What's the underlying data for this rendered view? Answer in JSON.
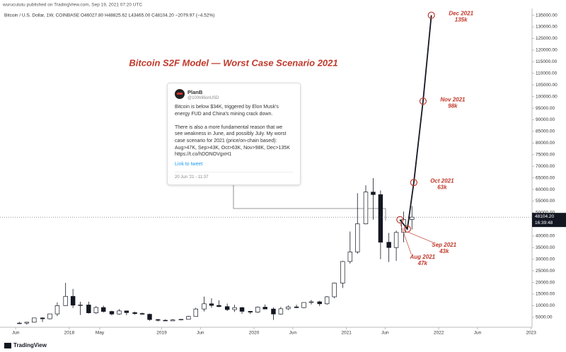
{
  "header": "wurucututu published on TradingView.com, Sep 19, 2021 07:20 UTC",
  "symbol_line": "Bitcoin / U.S. Dollar, 1W, COINBASE  O46027.80  H48825.62  L43465.00  C48104.20  −2079.97 (−4.52%)",
  "footer": "TradingView",
  "tweet": {
    "name": "PlanB",
    "handle": "@100trillionUSD",
    "lines": [
      "Bitcoin is below $34K, triggered by Elon Musk's",
      "energy FUD and China's mining crack down.",
      "",
      "There is also a more fundamental reason that we",
      "see weakness in June, and possibly July. My worst",
      "case scenario for 2021 (price/on-chain based):",
      "Aug>47K, Sep>43K, Oct>63K, Nov>98K, Dec>135K",
      "https://t.co/hDONOVgxH1"
    ],
    "link": "Link to tweet",
    "date": "20 Jun '21 - 11:37"
  },
  "chart_data": {
    "type": "candlestick",
    "title": "Bitcoin S2F Model — Worst Case Scenario 2021",
    "up_color": "#ffffff",
    "down_color": "#131722",
    "wick_color": "#131722",
    "xlim": [
      2017.25,
      2023.01
    ],
    "ylim": [
      1000,
      137000
    ],
    "xticks": [
      {
        "value": 2017.42,
        "label": "Jun"
      },
      {
        "value": 2018,
        "label": "2018"
      },
      {
        "value": 2018.33,
        "label": "May"
      },
      {
        "value": 2019,
        "label": "2019"
      },
      {
        "value": 2019.42,
        "label": "Jun"
      },
      {
        "value": 2020,
        "label": "2020"
      },
      {
        "value": 2020.42,
        "label": "Jun"
      },
      {
        "value": 2021,
        "label": "2021"
      },
      {
        "value": 2021.42,
        "label": "Jun"
      },
      {
        "value": 2022,
        "label": "2022"
      },
      {
        "value": 2022.42,
        "label": "Jun"
      },
      {
        "value": 2023,
        "label": "2023"
      }
    ],
    "yticks": [
      {
        "value": 5000,
        "label": "5000.00"
      },
      {
        "value": 10000,
        "label": "10000.00"
      },
      {
        "value": 15000,
        "label": "15000.00"
      },
      {
        "value": 20000,
        "label": "20000.00"
      },
      {
        "value": 25000,
        "label": "25000.00"
      },
      {
        "value": 30000,
        "label": "30000.00"
      },
      {
        "value": 35000,
        "label": "35000.00"
      },
      {
        "value": 40000,
        "label": "40000.00"
      },
      {
        "value": 45000,
        "label": "45000.00"
      },
      {
        "value": 50000,
        "label": "50000.00"
      },
      {
        "value": 55000,
        "label": "55000.00"
      },
      {
        "value": 60000,
        "label": "60000.00"
      },
      {
        "value": 65000,
        "label": "65000.00"
      },
      {
        "value": 70000,
        "label": "70000.00"
      },
      {
        "value": 75000,
        "label": "75000.00"
      },
      {
        "value": 80000,
        "label": "80000.00"
      },
      {
        "value": 85000,
        "label": "85000.00"
      },
      {
        "value": 90000,
        "label": "90000.00"
      },
      {
        "value": 95000,
        "label": "95000.00"
      },
      {
        "value": 100000,
        "label": "100000.00"
      },
      {
        "value": 105000,
        "label": "105000.00"
      },
      {
        "value": 110000,
        "label": "110000.00"
      },
      {
        "value": 115000,
        "label": "115000.00"
      },
      {
        "value": 120000,
        "label": "120000.00"
      },
      {
        "value": 125000,
        "label": "125000.00"
      },
      {
        "value": 130000,
        "label": "130000.00"
      },
      {
        "value": 135000,
        "label": "135000.00"
      }
    ],
    "x": [
      2017.46,
      2017.54,
      2017.62,
      2017.71,
      2017.79,
      2017.87,
      2017.96,
      2018.04,
      2018.12,
      2018.21,
      2018.29,
      2018.37,
      2018.46,
      2018.54,
      2018.62,
      2018.71,
      2018.79,
      2018.87,
      2018.96,
      2019.04,
      2019.12,
      2019.21,
      2019.29,
      2019.37,
      2019.46,
      2019.54,
      2019.62,
      2019.71,
      2019.79,
      2019.87,
      2019.96,
      2020.04,
      2020.12,
      2020.21,
      2020.29,
      2020.37,
      2020.46,
      2020.54,
      2020.62,
      2020.71,
      2020.79,
      2020.87,
      2020.96,
      2021.04,
      2021.12,
      2021.21,
      2021.29,
      2021.37,
      2021.46,
      2021.54,
      2021.62,
      2021.71
    ],
    "open": [
      2300,
      2480,
      2870,
      4700,
      4340,
      6450,
      10000,
      14000,
      10200,
      10300,
      6900,
      9200,
      7500,
      6400,
      7750,
      7000,
      6600,
      6300,
      4000,
      3700,
      3450,
      3850,
      4100,
      5350,
      8550,
      10800,
      10100,
      9600,
      8300,
      9150,
      7550,
      7200,
      9350,
      8550,
      6400,
      8650,
      9450,
      9150,
      11350,
      11650,
      10800,
      13800,
      19700,
      29000,
      33100,
      45200,
      58900,
      57800,
      37300,
      35000,
      41500,
      47100
    ],
    "high": [
      2980,
      2900,
      4750,
      4970,
      6470,
      11400,
      19800,
      17200,
      11700,
      11700,
      9800,
      10000,
      7800,
      8500,
      7800,
      7400,
      7000,
      6600,
      4300,
      4100,
      4200,
      4150,
      5600,
      9100,
      13900,
      13200,
      12300,
      10900,
      10400,
      9500,
      7700,
      9600,
      10500,
      9200,
      9450,
      10100,
      10400,
      11450,
      12450,
      12100,
      14100,
      19900,
      29300,
      41900,
      58400,
      61800,
      64900,
      59600,
      41300,
      42300,
      50500,
      52900
    ],
    "low": [
      2100,
      1830,
      2700,
      2970,
      4100,
      5500,
      10000,
      9000,
      6000,
      6600,
      6450,
      7000,
      5800,
      6100,
      5900,
      6100,
      6200,
      3500,
      3200,
      3350,
      3400,
      3700,
      4050,
      5300,
      7500,
      9100,
      9400,
      7700,
      7300,
      6500,
      6400,
      6850,
      8450,
      3850,
      6150,
      8100,
      8900,
      8900,
      10500,
      9850,
      10400,
      13200,
      17600,
      28100,
      32300,
      45000,
      47000,
      30000,
      28800,
      29300,
      37300,
      42800
    ],
    "close": [
      2480,
      2870,
      4700,
      4340,
      6450,
      10000,
      14000,
      10200,
      10300,
      6900,
      9200,
      7500,
      6400,
      7750,
      7000,
      6600,
      6300,
      4000,
      3700,
      3450,
      3850,
      4100,
      5350,
      8550,
      10800,
      10100,
      9600,
      8300,
      9150,
      7550,
      7200,
      9350,
      8550,
      6400,
      8650,
      9450,
      9150,
      11350,
      11650,
      10800,
      13800,
      19700,
      29000,
      33100,
      45200,
      58900,
      57800,
      37300,
      35000,
      41500,
      47100,
      48100
    ],
    "last_price": {
      "value": 48104.2,
      "label": "48104.20",
      "countdown": "16:39:48"
    },
    "projection": {
      "color": "#131722",
      "marker_color": "#c0392b",
      "label_color": "#c0392b",
      "x": [
        2021.58,
        2021.66,
        2021.73,
        2021.83,
        2021.92
      ],
      "values": [
        47000,
        43000,
        63000,
        98000,
        135000
      ],
      "labels": [
        "Aug 2021",
        "Sep 2021",
        "Oct 2021",
        "Nov 2021",
        "Dec 2021"
      ],
      "value_labels": [
        "47k",
        "43k",
        "63k",
        "98k",
        "135k"
      ]
    }
  }
}
